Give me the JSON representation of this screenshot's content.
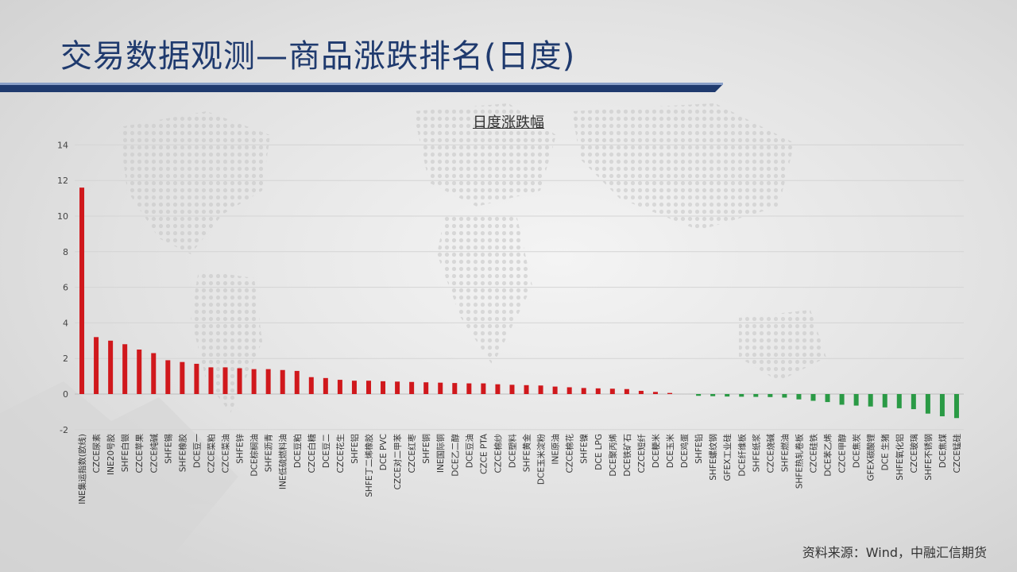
{
  "page": {
    "title": "交易数据观测—商品涨跌排名(日度)",
    "source": "资料来源：Wind，中融汇信期货",
    "colors": {
      "title": "#1f3a6e",
      "rise": "#d0181c",
      "fall": "#2a9a45",
      "accent_bar": "#1f3a6e"
    }
  },
  "chart_data": {
    "type": "bar",
    "title": "日度涨跌幅",
    "ylim": [
      -2,
      14
    ],
    "yticks": [
      -2,
      0,
      2,
      4,
      6,
      8,
      10,
      12,
      14
    ],
    "grid": true,
    "categories": [
      "INE集运指数(欧线)",
      "CZCE尿素",
      "INE20号胶",
      "SHFE白银",
      "CZCE苹果",
      "CZCE纯碱",
      "SHFE锡",
      "SHFE橡胶",
      "DCE豆一",
      "CZCE菜粕",
      "CZCE菜油",
      "SHFE锌",
      "DCE棕榈油",
      "SHFE沥青",
      "INE低硫燃料油",
      "DCE豆粕",
      "CZCE白糖",
      "DCE豆二",
      "CZCE花生",
      "SHFE铝",
      "SHFE丁二烯橡胶",
      "DCE PVC",
      "CZCE对二甲苯",
      "CZCE红枣",
      "SHFE铜",
      "INE国际铜",
      "DCE乙二醇",
      "DCE豆油",
      "CZCE PTA",
      "CZCE棉纱",
      "DCE塑料",
      "SHFE黄金",
      "DCE玉米淀粉",
      "INE原油",
      "CZCE棉花",
      "SHFE镍",
      "DCE LPG",
      "DCE聚丙烯",
      "DCE铁矿石",
      "CZCE短纤",
      "DCE粳米",
      "DCE玉米",
      "DCE鸡蛋",
      "SHFE铅",
      "SHFE螺纹钢",
      "GFEX工业硅",
      "DCE纤维板",
      "SHFE纸浆",
      "CZCE烧碱",
      "SHFE燃油",
      "SHFE热轧卷板",
      "CZCE硅铁",
      "DCE苯乙烯",
      "CZCE甲醇",
      "DCE焦炭",
      "GFEX碳酸锂",
      "DCE 生猪",
      "SHFE氧化铝",
      "CZCE玻璃",
      "SHFE不锈钢",
      "DCE焦煤",
      "CZCE锰硅"
    ],
    "values": [
      11.6,
      3.2,
      3.0,
      2.8,
      2.5,
      2.3,
      1.9,
      1.8,
      1.7,
      1.5,
      1.5,
      1.45,
      1.4,
      1.4,
      1.35,
      1.3,
      0.95,
      0.9,
      0.8,
      0.75,
      0.75,
      0.72,
      0.7,
      0.68,
      0.66,
      0.64,
      0.62,
      0.6,
      0.6,
      0.55,
      0.52,
      0.5,
      0.48,
      0.42,
      0.38,
      0.34,
      0.32,
      0.3,
      0.28,
      0.18,
      0.12,
      0.06,
      0,
      -0.1,
      -0.12,
      -0.14,
      -0.15,
      -0.16,
      -0.17,
      -0.2,
      -0.3,
      -0.38,
      -0.45,
      -0.6,
      -0.65,
      -0.7,
      -0.75,
      -0.8,
      -0.85,
      -1.1,
      -1.25,
      -1.35
    ]
  }
}
